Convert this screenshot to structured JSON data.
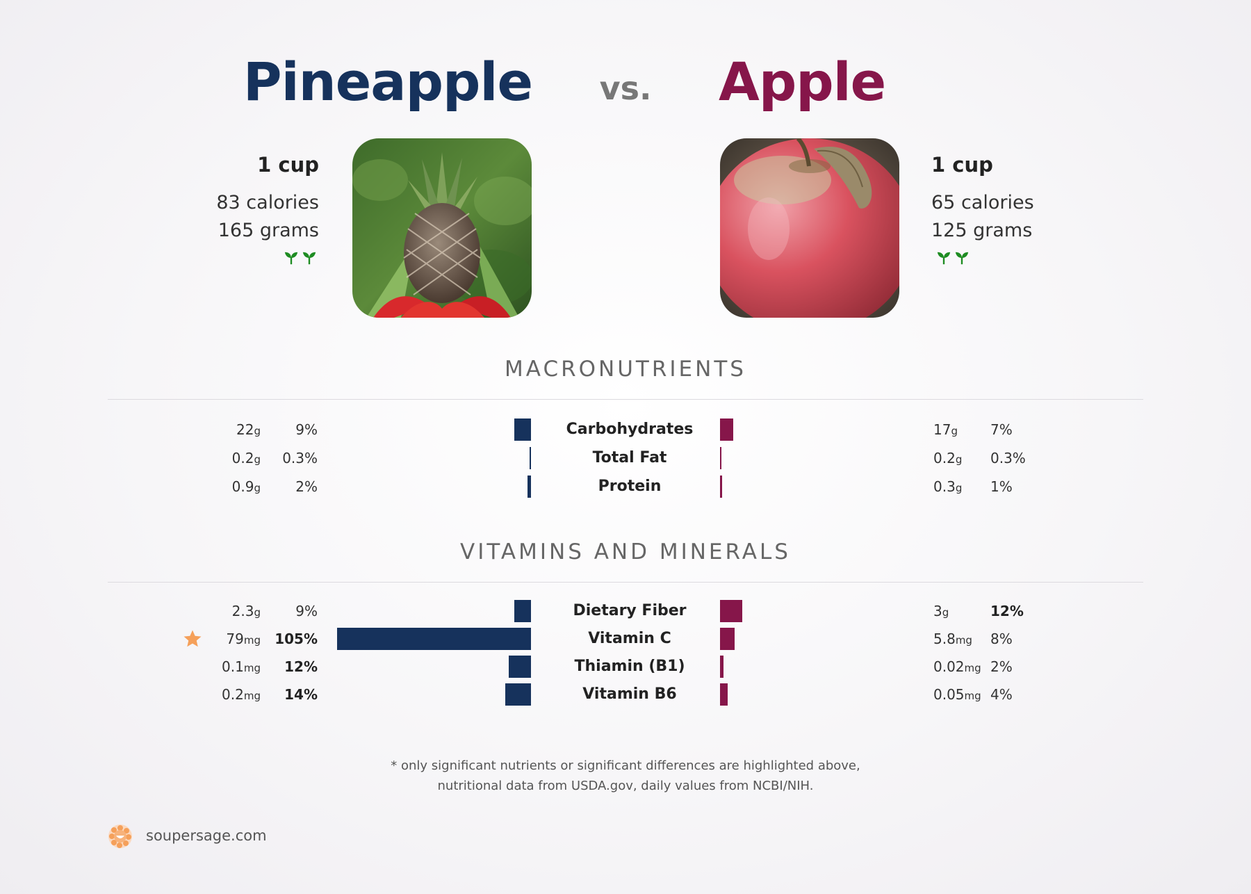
{
  "header": {
    "left_title": "Pineapple",
    "vs": "vs.",
    "right_title": "Apple"
  },
  "left_food": {
    "serving": "1 cup",
    "calories": "83 calories",
    "grams": "165 grams"
  },
  "right_food": {
    "serving": "1 cup",
    "calories": "65 calories",
    "grams": "125 grams"
  },
  "colors": {
    "left": "#16325c",
    "right": "#86164a",
    "star": "#f5a05a",
    "sprout": "#1e8c22"
  },
  "icons": {
    "left_badge": "sprout-icon",
    "right_badge": "sprout-icon",
    "highlight": "star-icon",
    "brand_logo": "soup-logo-icon"
  },
  "sections": {
    "macro_title": "MACRONUTRIENTS",
    "vitamins_title": "VITAMINS AND MINERALS"
  },
  "chart_data": [
    {
      "type": "bar",
      "orientation": "horizontal-mirrored",
      "categories": [
        "Carbohydrates",
        "Total Fat",
        "Protein"
      ],
      "series": [
        {
          "name": "Pineapple",
          "values": [
            9,
            0.3,
            2
          ]
        },
        {
          "name": "Apple",
          "values": [
            7,
            0.3,
            1
          ]
        }
      ],
      "rows": [
        {
          "label": "Carbohydrates",
          "left_amount": "22",
          "left_unit": "g",
          "left_pct": "9%",
          "left_bold": false,
          "right_amount": "17",
          "right_unit": "g",
          "right_pct": "7%",
          "right_bold": false,
          "star": false
        },
        {
          "label": "Total Fat",
          "left_amount": "0.2",
          "left_unit": "g",
          "left_pct": "0.3%",
          "left_bold": false,
          "right_amount": "0.2",
          "right_unit": "g",
          "right_pct": "0.3%",
          "right_bold": false,
          "star": false
        },
        {
          "label": "Protein",
          "left_amount": "0.9",
          "left_unit": "g",
          "left_pct": "2%",
          "left_bold": false,
          "right_amount": "0.3",
          "right_unit": "g",
          "right_pct": "1%",
          "right_bold": false,
          "star": false
        }
      ]
    },
    {
      "type": "bar",
      "orientation": "horizontal-mirrored",
      "categories": [
        "Dietary Fiber",
        "Vitamin C",
        "Thiamin (B1)",
        "Vitamin B6"
      ],
      "series": [
        {
          "name": "Pineapple",
          "values": [
            9,
            105,
            12,
            14
          ]
        },
        {
          "name": "Apple",
          "values": [
            12,
            8,
            2,
            4
          ]
        }
      ],
      "rows": [
        {
          "label": "Dietary Fiber",
          "left_amount": "2.3",
          "left_unit": "g",
          "left_pct": "9%",
          "left_bold": false,
          "right_amount": "3",
          "right_unit": "g",
          "right_pct": "12%",
          "right_bold": true,
          "star": false
        },
        {
          "label": "Vitamin C",
          "left_amount": "79",
          "left_unit": "mg",
          "left_pct": "105%",
          "left_bold": true,
          "right_amount": "5.8",
          "right_unit": "mg",
          "right_pct": "8%",
          "right_bold": false,
          "star": true
        },
        {
          "label": "Thiamin (B1)",
          "left_amount": "0.1",
          "left_unit": "mg",
          "left_pct": "12%",
          "left_bold": true,
          "right_amount": "0.02",
          "right_unit": "mg",
          "right_pct": "2%",
          "right_bold": false,
          "star": false
        },
        {
          "label": "Vitamin B6",
          "left_amount": "0.2",
          "left_unit": "mg",
          "left_pct": "14%",
          "left_bold": true,
          "right_amount": "0.05",
          "right_unit": "mg",
          "right_pct": "4%",
          "right_bold": false,
          "star": false
        }
      ]
    }
  ],
  "footer": {
    "note_line1": "* only significant nutrients or significant differences are highlighted above,",
    "note_line2": "nutritional data from USDA.gov, daily values from NCBI/NIH.",
    "brand": "soupersage.com"
  }
}
